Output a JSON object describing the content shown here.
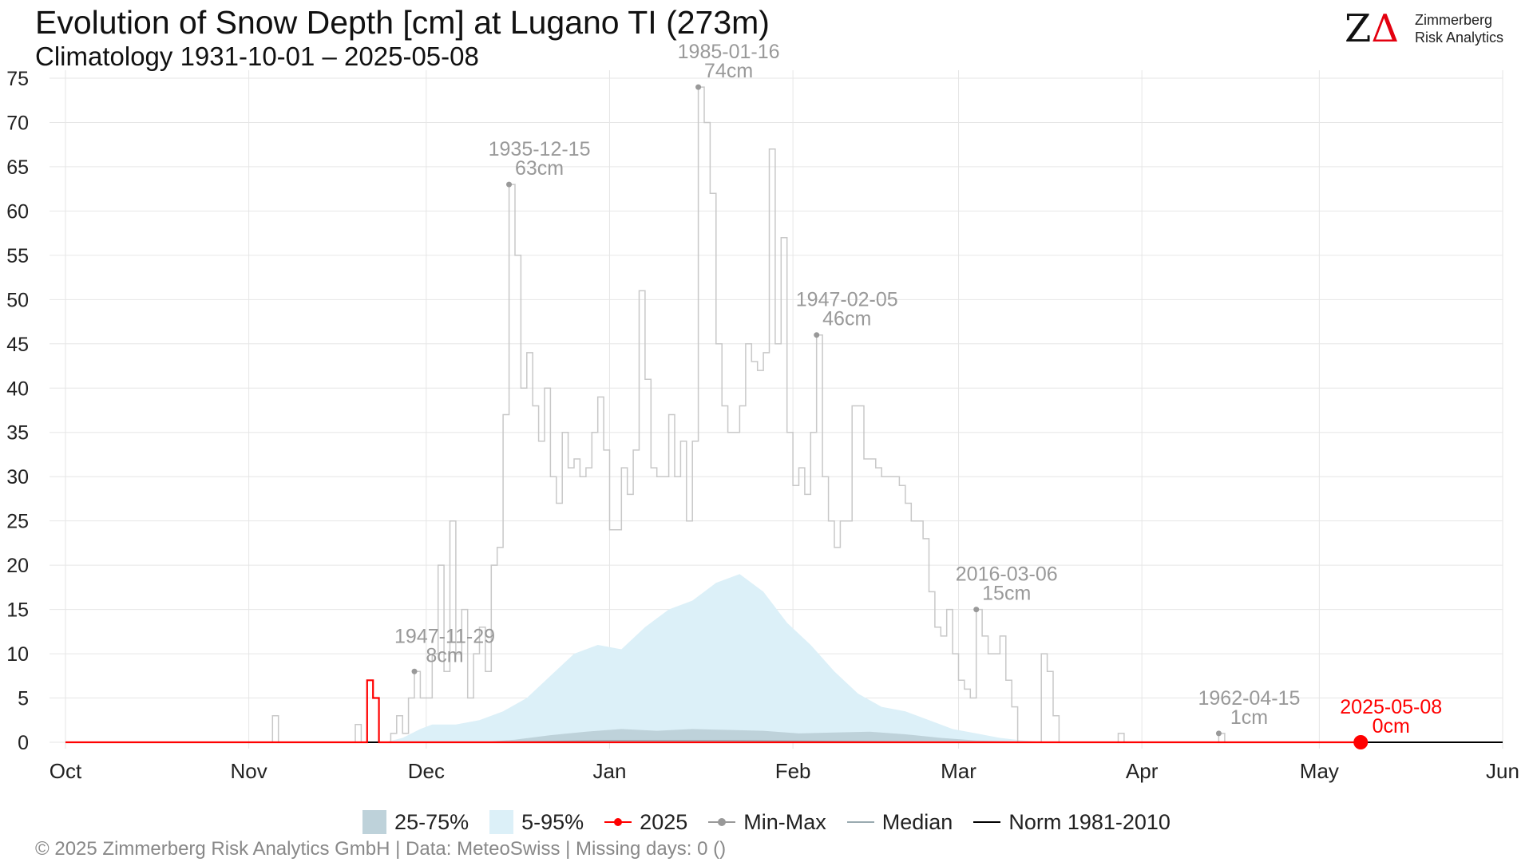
{
  "header": {
    "title": "Evolution of Snow Depth [cm] at Lugano  TI (273m)",
    "subtitle": "Climatology 1931-10-01 – 2025-05-08"
  },
  "logo": {
    "mark_z": "Z",
    "mark_delta": "Δ",
    "name_line1": "Zimmerberg",
    "name_line2": "Risk Analytics"
  },
  "legend": {
    "iqr": "25-75%",
    "p5_95": "5-95%",
    "current": "2025",
    "minmax": "Min-Max",
    "median": "Median",
    "norm": "Norm 1981-2010"
  },
  "colors": {
    "band_5_95": "#dcf0f8",
    "band_25_75": "#bed2da",
    "minmax": "#c8c8c8",
    "current": "#ff0000",
    "norm": "#000000",
    "median": "#9aaab0",
    "annotation": "#999999",
    "grid": "#e6e6e6"
  },
  "footer": "©  2025 Zimmerberg Risk Analytics GmbH | Data: MeteoSwiss | Missing days: 0 ()",
  "chart_data": {
    "type": "area",
    "x_axis": {
      "unit": "day of season",
      "start": "Oct 01",
      "end": "Jun 01",
      "ticks": [
        {
          "label": "Oct",
          "day": 0
        },
        {
          "label": "Nov",
          "day": 31
        },
        {
          "label": "Dec",
          "day": 61
        },
        {
          "label": "Jan",
          "day": 92
        },
        {
          "label": "Feb",
          "day": 123
        },
        {
          "label": "Mar",
          "day": 151
        },
        {
          "label": "Apr",
          "day": 182
        },
        {
          "label": "May",
          "day": 212
        },
        {
          "label": "Jun",
          "day": 243
        }
      ]
    },
    "y_axis": {
      "range": [
        0,
        75
      ],
      "ticks": [
        0,
        5,
        10,
        15,
        20,
        25,
        30,
        35,
        40,
        45,
        50,
        55,
        60,
        65,
        70,
        75
      ]
    },
    "grid": true,
    "legend_position": "bottom",
    "series": [
      {
        "name": "Min-Max",
        "kind": "step-max",
        "points": [
          [
            0,
            0
          ],
          [
            35,
            0
          ],
          [
            35,
            3
          ],
          [
            36,
            3
          ],
          [
            36,
            0
          ],
          [
            49,
            0
          ],
          [
            49,
            2
          ],
          [
            50,
            2
          ],
          [
            50,
            0
          ],
          [
            55,
            0
          ],
          [
            55,
            1
          ],
          [
            56,
            1
          ],
          [
            56,
            3
          ],
          [
            57,
            3
          ],
          [
            57,
            1
          ],
          [
            58,
            1
          ],
          [
            58,
            5
          ],
          [
            59,
            5
          ],
          [
            59,
            8
          ],
          [
            60,
            8
          ],
          [
            60,
            5
          ],
          [
            61,
            5
          ],
          [
            62,
            5
          ],
          [
            62,
            10
          ],
          [
            63,
            10
          ],
          [
            63,
            20
          ],
          [
            64,
            20
          ],
          [
            64,
            8
          ],
          [
            65,
            8
          ],
          [
            65,
            25
          ],
          [
            66,
            25
          ],
          [
            66,
            10
          ],
          [
            67,
            10
          ],
          [
            67,
            15
          ],
          [
            68,
            15
          ],
          [
            68,
            5
          ],
          [
            69,
            5
          ],
          [
            69,
            10
          ],
          [
            70,
            10
          ],
          [
            70,
            13
          ],
          [
            71,
            13
          ],
          [
            71,
            8
          ],
          [
            72,
            8
          ],
          [
            72,
            20
          ],
          [
            73,
            20
          ],
          [
            73,
            22
          ],
          [
            74,
            22
          ],
          [
            74,
            37
          ],
          [
            75,
            37
          ],
          [
            75,
            63
          ],
          [
            76,
            63
          ],
          [
            76,
            55
          ],
          [
            77,
            55
          ],
          [
            77,
            40
          ],
          [
            78,
            40
          ],
          [
            78,
            44
          ],
          [
            79,
            44
          ],
          [
            79,
            38
          ],
          [
            80,
            38
          ],
          [
            80,
            34
          ],
          [
            81,
            34
          ],
          [
            81,
            40
          ],
          [
            82,
            40
          ],
          [
            82,
            30
          ],
          [
            83,
            30
          ],
          [
            83,
            27
          ],
          [
            84,
            27
          ],
          [
            84,
            35
          ],
          [
            85,
            35
          ],
          [
            85,
            31
          ],
          [
            86,
            31
          ],
          [
            86,
            32
          ],
          [
            87,
            32
          ],
          [
            87,
            30
          ],
          [
            88,
            30
          ],
          [
            88,
            31
          ],
          [
            89,
            31
          ],
          [
            89,
            35
          ],
          [
            90,
            35
          ],
          [
            90,
            39
          ],
          [
            91,
            39
          ],
          [
            91,
            33
          ],
          [
            92,
            33
          ],
          [
            92,
            24
          ],
          [
            94,
            24
          ],
          [
            94,
            31
          ],
          [
            95,
            31
          ],
          [
            95,
            28
          ],
          [
            96,
            28
          ],
          [
            96,
            33
          ],
          [
            97,
            33
          ],
          [
            97,
            51
          ],
          [
            98,
            51
          ],
          [
            98,
            41
          ],
          [
            99,
            41
          ],
          [
            99,
            31
          ],
          [
            100,
            31
          ],
          [
            100,
            30
          ],
          [
            102,
            30
          ],
          [
            102,
            37
          ],
          [
            103,
            37
          ],
          [
            103,
            30
          ],
          [
            104,
            30
          ],
          [
            104,
            34
          ],
          [
            105,
            34
          ],
          [
            105,
            25
          ],
          [
            106,
            25
          ],
          [
            106,
            34
          ],
          [
            107,
            34
          ],
          [
            107,
            74
          ],
          [
            108,
            74
          ],
          [
            108,
            70
          ],
          [
            109,
            70
          ],
          [
            109,
            62
          ],
          [
            110,
            62
          ],
          [
            110,
            45
          ],
          [
            111,
            45
          ],
          [
            111,
            38
          ],
          [
            112,
            38
          ],
          [
            112,
            35
          ],
          [
            114,
            35
          ],
          [
            114,
            38
          ],
          [
            115,
            38
          ],
          [
            115,
            45
          ],
          [
            116,
            45
          ],
          [
            116,
            43
          ],
          [
            117,
            43
          ],
          [
            117,
            42
          ],
          [
            118,
            42
          ],
          [
            118,
            44
          ],
          [
            119,
            44
          ],
          [
            119,
            67
          ],
          [
            120,
            67
          ],
          [
            120,
            45
          ],
          [
            121,
            45
          ],
          [
            121,
            57
          ],
          [
            122,
            57
          ],
          [
            122,
            35
          ],
          [
            123,
            35
          ],
          [
            123,
            29
          ],
          [
            124,
            29
          ],
          [
            124,
            31
          ],
          [
            125,
            31
          ],
          [
            125,
            28
          ],
          [
            126,
            28
          ],
          [
            126,
            35
          ],
          [
            127,
            35
          ],
          [
            127,
            46
          ],
          [
            128,
            46
          ],
          [
            128,
            30
          ],
          [
            129,
            30
          ],
          [
            129,
            25
          ],
          [
            130,
            25
          ],
          [
            130,
            22
          ],
          [
            131,
            22
          ],
          [
            131,
            25
          ],
          [
            133,
            25
          ],
          [
            133,
            38
          ],
          [
            135,
            38
          ],
          [
            135,
            32
          ],
          [
            137,
            32
          ],
          [
            137,
            31
          ],
          [
            138,
            31
          ],
          [
            138,
            30
          ],
          [
            141,
            30
          ],
          [
            141,
            29
          ],
          [
            142,
            29
          ],
          [
            142,
            27
          ],
          [
            143,
            27
          ],
          [
            143,
            25
          ],
          [
            145,
            25
          ],
          [
            145,
            23
          ],
          [
            146,
            23
          ],
          [
            146,
            17
          ],
          [
            147,
            17
          ],
          [
            147,
            13
          ],
          [
            148,
            13
          ],
          [
            148,
            12
          ],
          [
            149,
            12
          ],
          [
            149,
            15
          ],
          [
            150,
            15
          ],
          [
            150,
            10
          ],
          [
            151,
            10
          ],
          [
            151,
            7
          ],
          [
            152,
            7
          ],
          [
            152,
            6
          ],
          [
            153,
            6
          ],
          [
            153,
            5
          ],
          [
            154,
            5
          ],
          [
            154,
            15
          ],
          [
            155,
            15
          ],
          [
            155,
            12
          ],
          [
            156,
            12
          ],
          [
            156,
            10
          ],
          [
            158,
            10
          ],
          [
            158,
            12
          ],
          [
            159,
            12
          ],
          [
            159,
            7
          ],
          [
            160,
            7
          ],
          [
            160,
            4
          ],
          [
            161,
            4
          ],
          [
            161,
            0
          ],
          [
            165,
            0
          ],
          [
            165,
            10
          ],
          [
            166,
            10
          ],
          [
            166,
            8
          ],
          [
            167,
            8
          ],
          [
            167,
            3
          ],
          [
            168,
            3
          ],
          [
            168,
            0
          ],
          [
            178,
            0
          ],
          [
            178,
            1
          ],
          [
            179,
            1
          ],
          [
            179,
            0
          ],
          [
            195,
            0
          ],
          [
            195,
            1
          ],
          [
            196,
            1
          ],
          [
            196,
            0
          ],
          [
            243,
            0
          ]
        ]
      },
      {
        "name": "5-95%",
        "kind": "band",
        "days": [
          54,
          57,
          60,
          62,
          66,
          70,
          74,
          78,
          82,
          86,
          90,
          94,
          98,
          102,
          106,
          110,
          114,
          118,
          122,
          126,
          130,
          134,
          138,
          142,
          146,
          150,
          154,
          158,
          162,
          166,
          168
        ],
        "lower": [
          0,
          0,
          0,
          0,
          0,
          0,
          0,
          0,
          0,
          0,
          0,
          0,
          0,
          0,
          0,
          0,
          0,
          0,
          0,
          0,
          0,
          0,
          0,
          0,
          0,
          0,
          0,
          0,
          0,
          0,
          0
        ],
        "upper": [
          0,
          0.5,
          1.5,
          2,
          2,
          2.5,
          3.5,
          5,
          7.5,
          10,
          11,
          10.5,
          13,
          15,
          16,
          18,
          19,
          17,
          13.5,
          11,
          8,
          5.5,
          4,
          3.5,
          2.5,
          1.5,
          1,
          0.5,
          0.2,
          0,
          0
        ]
      },
      {
        "name": "25-75%",
        "kind": "band",
        "days": [
          70,
          76,
          82,
          88,
          94,
          100,
          106,
          112,
          118,
          124,
          130,
          136,
          142,
          148,
          154,
          160,
          166
        ],
        "lower": [
          0,
          0,
          0,
          0,
          0,
          0,
          0,
          0,
          0,
          0,
          0,
          0,
          0,
          0,
          0,
          0,
          0
        ],
        "upper": [
          0,
          0.3,
          0.8,
          1.2,
          1.5,
          1.3,
          1.5,
          1.4,
          1.3,
          1,
          1.1,
          1.2,
          0.9,
          0.5,
          0.2,
          0.1,
          0
        ]
      },
      {
        "name": "Median",
        "kind": "line",
        "points": [
          [
            70,
            0
          ],
          [
            82,
            0.1
          ],
          [
            92,
            0.2
          ],
          [
            112,
            0.2
          ],
          [
            130,
            0.1
          ],
          [
            150,
            0
          ],
          [
            243,
            0
          ]
        ]
      },
      {
        "name": "Norm 1981-2010",
        "kind": "line",
        "points": [
          [
            0,
            0
          ],
          [
            243,
            0
          ]
        ]
      },
      {
        "name": "2025",
        "kind": "step",
        "points": [
          [
            0,
            0
          ],
          [
            51,
            0
          ],
          [
            51,
            7
          ],
          [
            52,
            7
          ],
          [
            52,
            5
          ],
          [
            53,
            5
          ],
          [
            53,
            0
          ],
          [
            219,
            0
          ]
        ],
        "current": {
          "day": 219,
          "date": "2025-05-08",
          "value": 0
        }
      }
    ],
    "annotations": [
      {
        "date": "1947-11-29",
        "value": "8cm",
        "day": 59,
        "y": 8
      },
      {
        "date": "1935-12-15",
        "value": "63cm",
        "day": 75,
        "y": 63
      },
      {
        "date": "1985-01-16",
        "value": "74cm",
        "day": 107,
        "y": 74
      },
      {
        "date": "1947-02-05",
        "value": "46cm",
        "day": 127,
        "y": 46
      },
      {
        "date": "2016-03-06",
        "value": "15cm",
        "day": 154,
        "y": 15
      },
      {
        "date": "1962-04-15",
        "value": "1cm",
        "day": 195,
        "y": 1
      },
      {
        "date": "2025-05-08",
        "value": "0cm",
        "day": 219,
        "y": 0,
        "highlight": true
      }
    ]
  }
}
